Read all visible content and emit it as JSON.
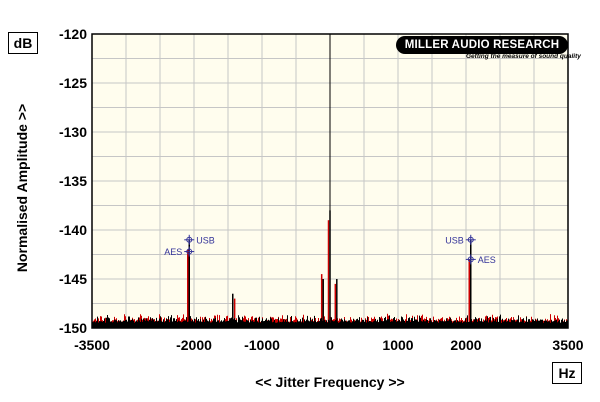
{
  "y_unit": "dB",
  "x_unit": "Hz",
  "logo": {
    "name": "MILLER AUDIO RESEARCH",
    "tagline": "Getting the measure of sound quality"
  },
  "colors": {
    "background": "#fffdee",
    "grid": "#c6c6c6",
    "series_red": "#cc0000",
    "series_black": "#000000",
    "marker": "#333399"
  },
  "chart_data": {
    "type": "line",
    "xlabel": "<< Jitter Frequency >>",
    "ylabel": "Normalised Amplitude >>",
    "xlim": [
      -3500,
      3500
    ],
    "ylim": [
      -150,
      -120
    ],
    "xticks": [
      -3500,
      -2000,
      -1000,
      0,
      1000,
      2000,
      3500
    ],
    "yticks": [
      -120,
      -125,
      -130,
      -135,
      -140,
      -145,
      -150
    ],
    "grid": true,
    "series": [
      {
        "name": "USB",
        "color": "#000000",
        "peaks": [
          {
            "x": -2070,
            "y": -141
          },
          {
            "x": 0,
            "y": -138
          },
          {
            "x": -1430,
            "y": -146.5
          },
          {
            "x": 2070,
            "y": -141
          },
          {
            "x": -100,
            "y": -145
          },
          {
            "x": 100,
            "y": -145
          }
        ]
      },
      {
        "name": "AES",
        "color": "#cc0000",
        "peaks": [
          {
            "x": -2070,
            "y": -142
          },
          {
            "x": 0,
            "y": -139
          },
          {
            "x": -1380,
            "y": -147
          },
          {
            "x": 2070,
            "y": -143
          },
          {
            "x": -100,
            "y": -144.5
          },
          {
            "x": 100,
            "y": -145.5
          }
        ]
      }
    ],
    "noise_floor_db": -149.5,
    "annotations": [
      {
        "text": "USB",
        "x": -2070,
        "y": -141,
        "side": "right"
      },
      {
        "text": "AES",
        "x": -2070,
        "y": -142.2,
        "side": "left"
      },
      {
        "text": "USB",
        "x": 2070,
        "y": -141,
        "side": "left"
      },
      {
        "text": "AES",
        "x": 2070,
        "y": -143,
        "side": "right"
      }
    ]
  }
}
